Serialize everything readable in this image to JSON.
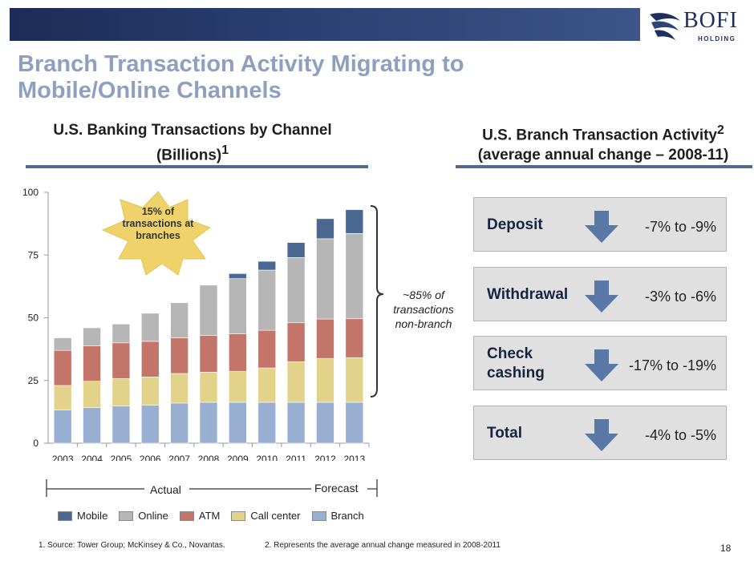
{
  "logo": {
    "text": "BOFI",
    "sub": "HOLDING"
  },
  "page_title": "Branch Transaction Activity Migrating to Mobile/Online Channels",
  "left_heading": {
    "line1": "U.S. Banking Transactions by Channel",
    "line2": "(Billions)",
    "sup": "1"
  },
  "right_heading": {
    "line1_main": "U.S. Branch Transaction Activity",
    "line1_sup": "2",
    "line2": "(average annual change – 2008-11)"
  },
  "callouts": {
    "branch_share": "15% of transactions at branches",
    "nonbranch_share": "~85% of transactions non-branch"
  },
  "timeline": {
    "actual": "Actual",
    "forecast": "Forecast"
  },
  "chart_data": {
    "type": "bar",
    "stacked": true,
    "categories": [
      "2003",
      "2004",
      "2005",
      "2006",
      "2007",
      "2008",
      "2009",
      "2010",
      "2011",
      "2012",
      "2013"
    ],
    "series": [
      {
        "name": "Branch",
        "color": "#98afd1",
        "values": [
          13.2,
          14.2,
          14.8,
          15.2,
          16,
          16.3,
          16.3,
          16.3,
          16.3,
          16.3,
          16.3
        ]
      },
      {
        "name": "Call center",
        "color": "#e3d38a",
        "values": [
          9.8,
          10.5,
          11,
          11.2,
          11.8,
          12,
          12.3,
          13.7,
          16.2,
          17.5,
          17.8
        ]
      },
      {
        "name": "ATM",
        "color": "#c4756a",
        "values": [
          14,
          14.1,
          14.2,
          14.2,
          14.2,
          14.7,
          15,
          15,
          15.5,
          15.7,
          15.5
        ]
      },
      {
        "name": "Online",
        "color": "#b6b6b6",
        "values": [
          5,
          7.2,
          7.5,
          11.2,
          14,
          20,
          22,
          24,
          26,
          32,
          34
        ]
      },
      {
        "name": "Mobile",
        "color": "#4b6892",
        "values": [
          0,
          0,
          0,
          0,
          0,
          0,
          2,
          3.5,
          6,
          8,
          9.5
        ]
      }
    ],
    "y_ticks": [
      0,
      25,
      50,
      75,
      100
    ],
    "ylim": [
      0,
      100
    ],
    "legend_order": [
      "Mobile",
      "Online",
      "ATM",
      "Call center",
      "Branch"
    ],
    "legend_position": "bottom"
  },
  "activity": [
    {
      "label": "Deposit",
      "value": "-7% to -9%"
    },
    {
      "label": "Withdrawal",
      "value": "-3% to -6%"
    },
    {
      "label": "Check cashing",
      "value": "-17% to -19%"
    },
    {
      "label": "Total",
      "value": "-4% to -5%"
    }
  ],
  "footnotes": {
    "note1": "1. Source:  Tower Group; McKinsey & Co., Novantas.",
    "note2": "2. Represents the average annual change measured in 2008-2011"
  },
  "page_number": "18",
  "colors": {
    "title": "#8ea0bf",
    "arrow": "#5a78a6",
    "callout_star": "#efd36a"
  }
}
